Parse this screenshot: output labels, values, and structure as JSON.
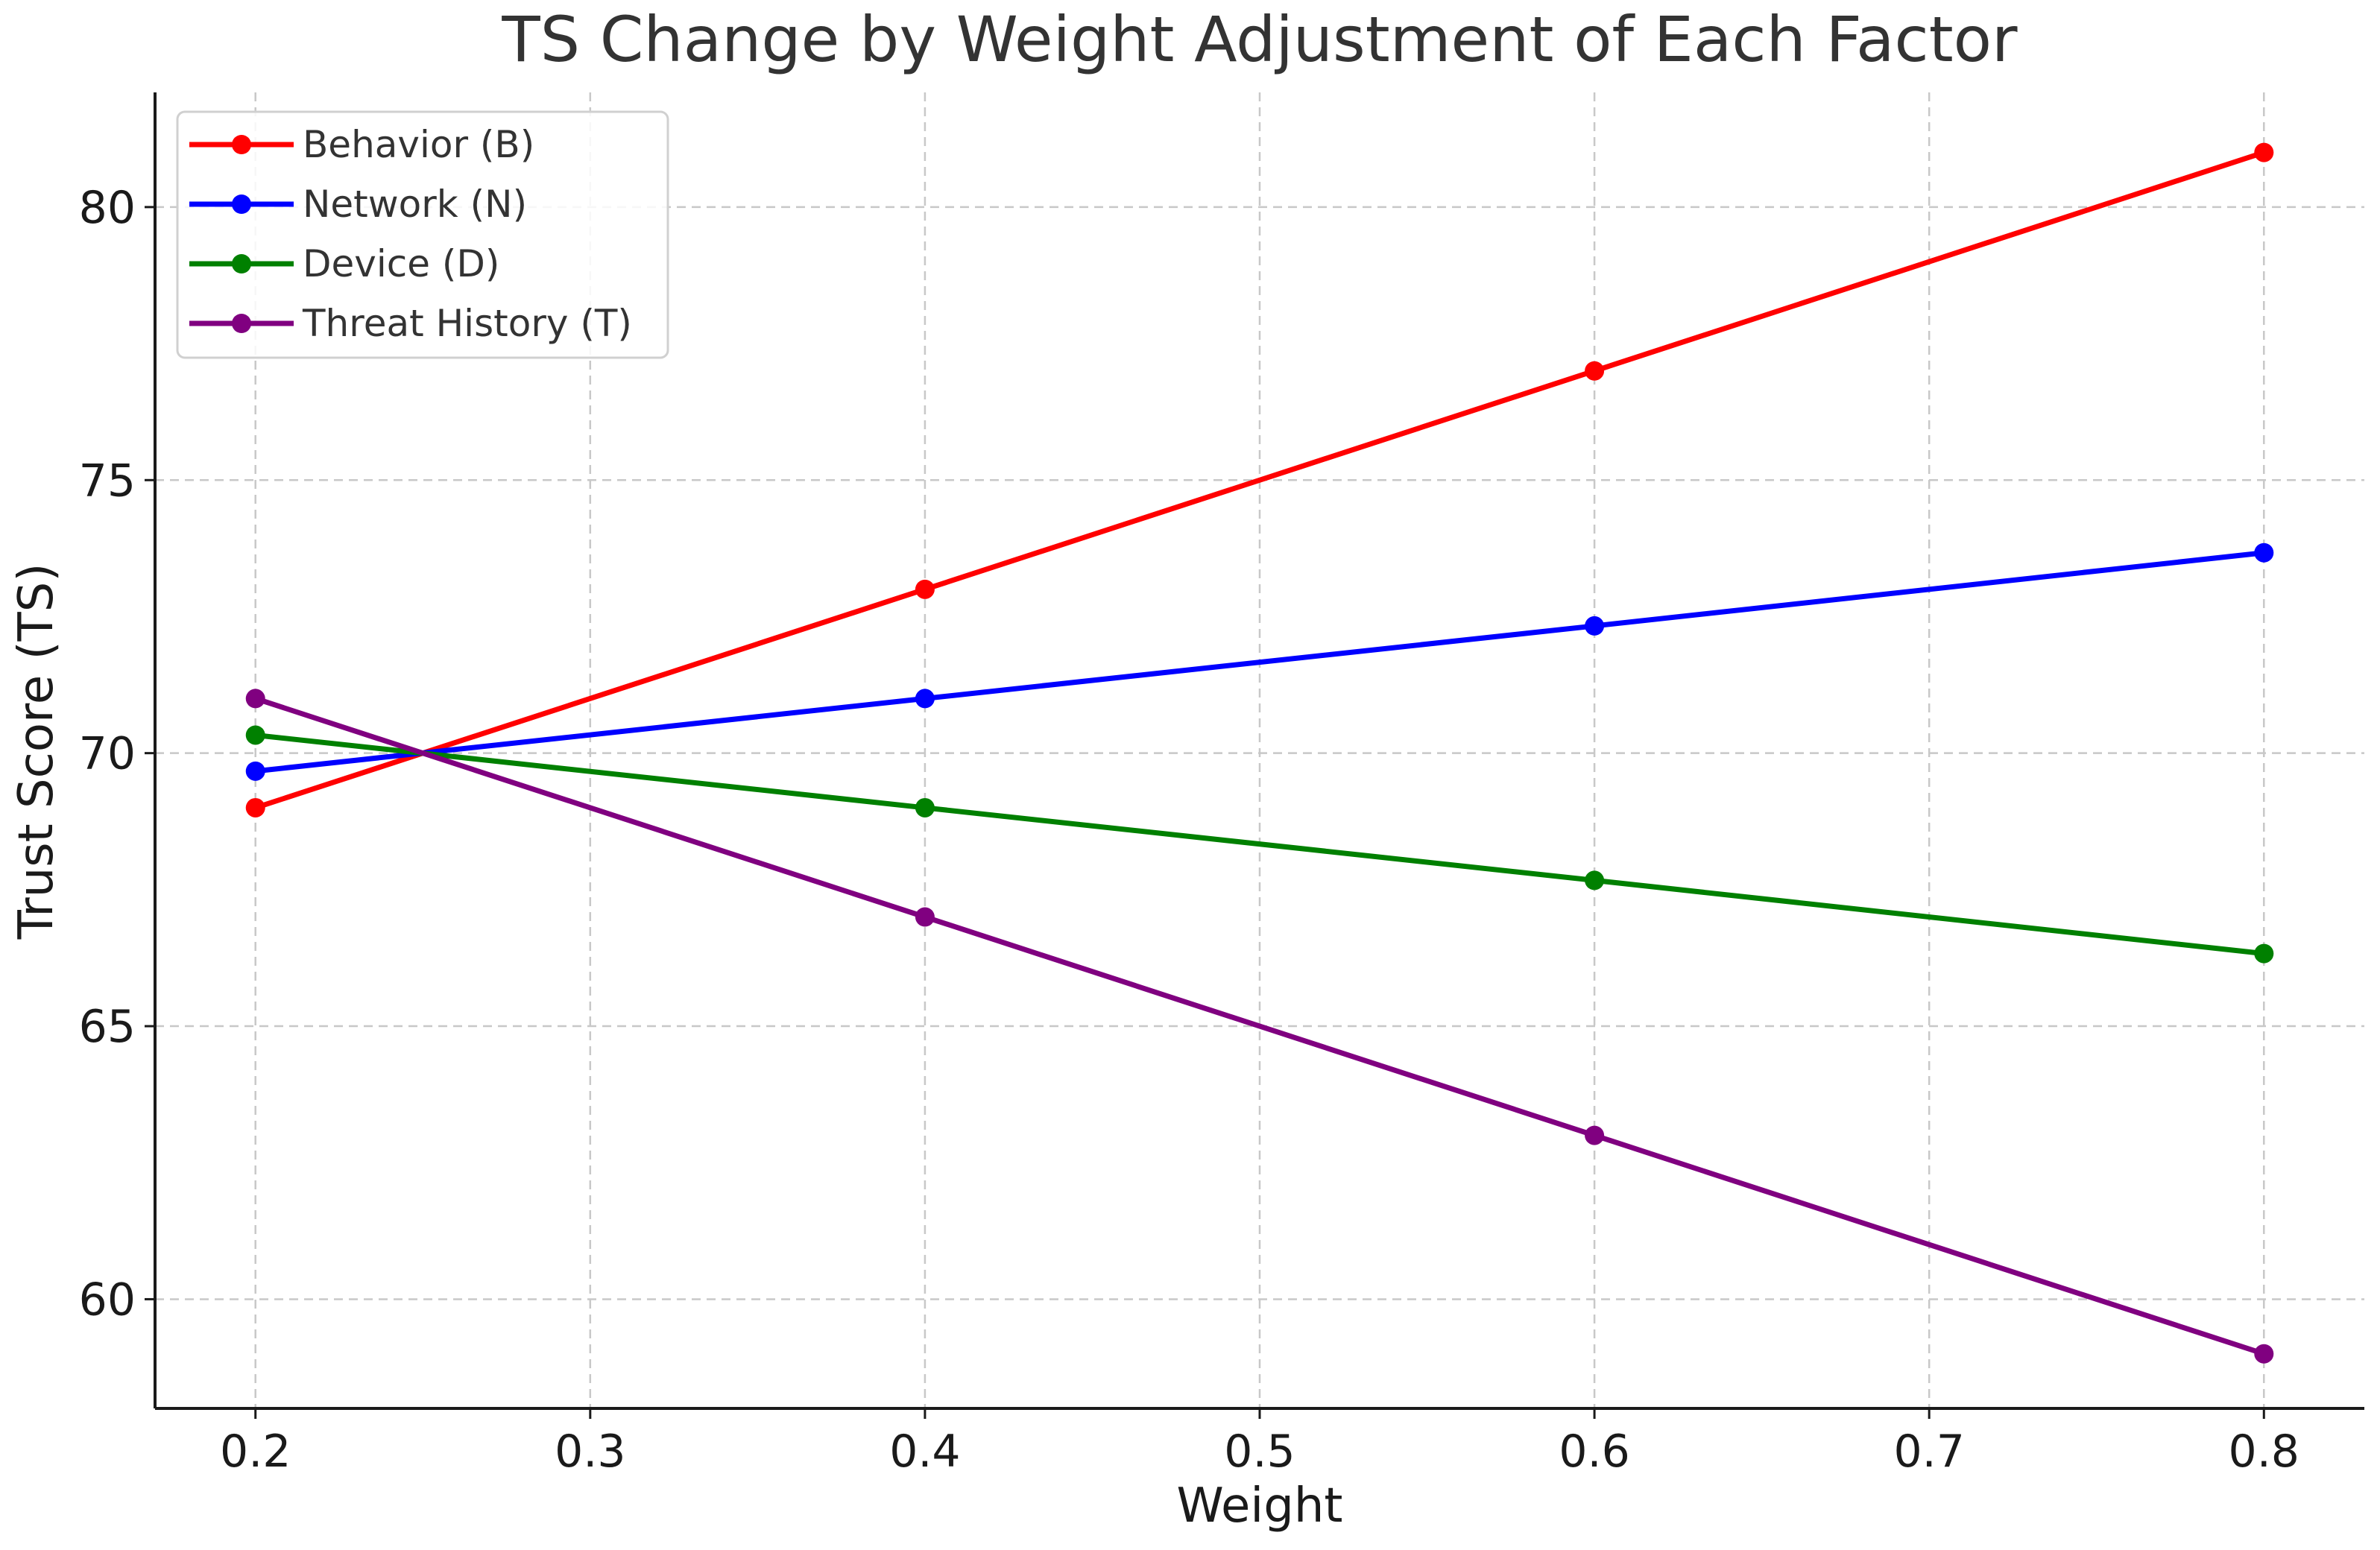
{
  "chart_data": {
    "type": "line",
    "title": "TS Change by Weight Adjustment of Each Factor",
    "xlabel": "Weight",
    "ylabel": "Trust Score (TS)",
    "x": [
      0.2,
      0.4,
      0.6,
      0.8
    ],
    "xlim": [
      0.17,
      0.83
    ],
    "ylim": [
      58.0,
      82.1
    ],
    "xticks": [
      0.2,
      0.3,
      0.4,
      0.5,
      0.6,
      0.7,
      0.8
    ],
    "xtick_labels": [
      "0.2",
      "0.3",
      "0.4",
      "0.5",
      "0.6",
      "0.7",
      "0.8"
    ],
    "yticks": [
      60,
      65,
      70,
      75,
      80
    ],
    "ytick_labels": [
      "60",
      "65",
      "70",
      "75",
      "80"
    ],
    "grid": true,
    "legend_position": "top-left",
    "series": [
      {
        "name": "Behavior (B)",
        "color": "#ff0000",
        "values": [
          69.0,
          73.0,
          77.0,
          81.0
        ]
      },
      {
        "name": "Network (N)",
        "color": "#0000ff",
        "values": [
          69.67,
          71.0,
          72.33,
          73.67
        ]
      },
      {
        "name": "Device (D)",
        "color": "#008000",
        "values": [
          70.33,
          69.0,
          67.67,
          66.33
        ]
      },
      {
        "name": "Threat History (T)",
        "color": "#800080",
        "values": [
          71.0,
          67.0,
          63.0,
          59.0
        ]
      }
    ]
  }
}
